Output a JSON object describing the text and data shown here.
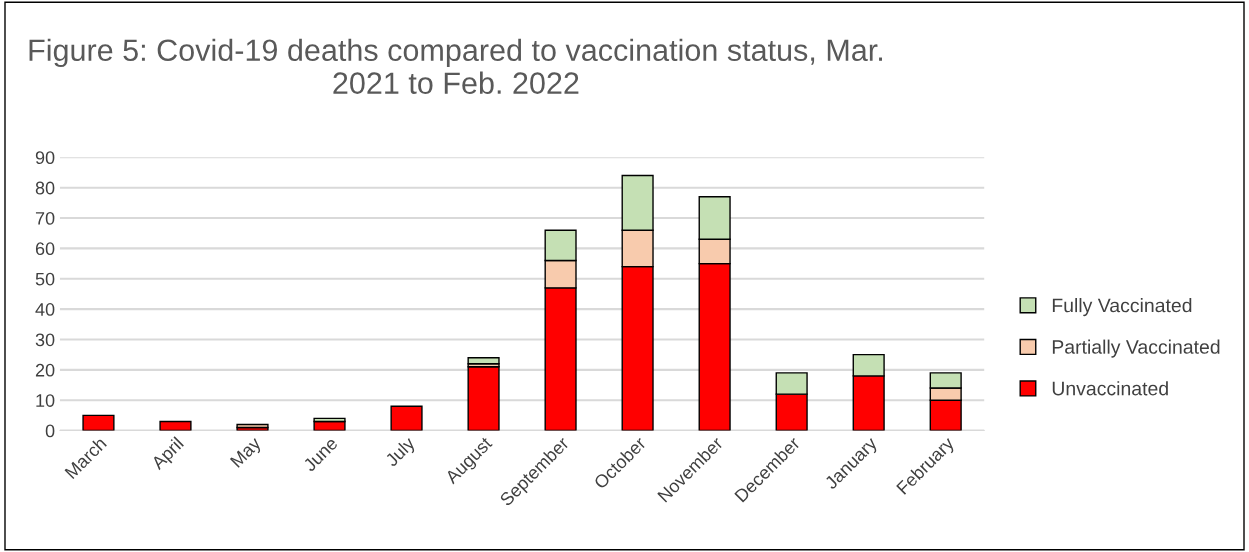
{
  "chart_data": {
    "type": "bar",
    "title": "Figure 5: Covid-19 deaths compared to vaccination status, Mar. 2021 to Feb. 2022",
    "categories": [
      "March",
      "April",
      "May",
      "June",
      "July",
      "August",
      "September",
      "October",
      "November",
      "December",
      "January",
      "February"
    ],
    "stacked": true,
    "series": [
      {
        "name": "Unvaccinated",
        "color": "#ff0000",
        "values": [
          5,
          3,
          1,
          3,
          8,
          21,
          47,
          54,
          55,
          12,
          18,
          10
        ]
      },
      {
        "name": "Partially Vaccinated",
        "color": "#f8cbad",
        "values": [
          0,
          0,
          1,
          0,
          0,
          1,
          9,
          12,
          8,
          0,
          0,
          4
        ]
      },
      {
        "name": "Fully Vaccinated",
        "color": "#c5e0b4",
        "values": [
          0,
          0,
          0,
          1,
          0,
          2,
          10,
          18,
          14,
          7,
          7,
          5
        ]
      }
    ],
    "ylim": [
      0,
      90
    ],
    "yticks": [
      0,
      10,
      20,
      30,
      40,
      50,
      60,
      70,
      80,
      90
    ],
    "grid": "y",
    "legend": "right"
  }
}
